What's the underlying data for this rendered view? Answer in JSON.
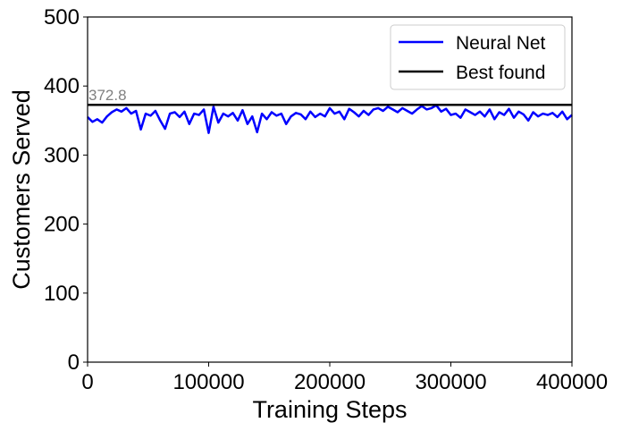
{
  "chart_data": {
    "type": "line",
    "xlabel": "Training Steps",
    "ylabel": "Customers Served",
    "xlim": [
      0,
      400000
    ],
    "ylim": [
      0,
      500
    ],
    "x_ticks": [
      0,
      100000,
      200000,
      300000,
      400000
    ],
    "x_tick_labels": [
      "0",
      "100000",
      "200000",
      "300000",
      "400000"
    ],
    "y_ticks": [
      0,
      100,
      200,
      300,
      400,
      500
    ],
    "y_tick_labels": [
      "0",
      "100",
      "200",
      "300",
      "400",
      "500"
    ],
    "grid": false,
    "legend_position": "top-right",
    "series": [
      {
        "name": "Neural Net",
        "color": "#0000ff",
        "x": [
          0,
          4000,
          8000,
          12000,
          16000,
          20000,
          24000,
          28000,
          32000,
          36000,
          40000,
          44000,
          48000,
          52000,
          56000,
          60000,
          64000,
          68000,
          72000,
          76000,
          80000,
          84000,
          88000,
          92000,
          96000,
          100000,
          104000,
          108000,
          112000,
          116000,
          120000,
          124000,
          128000,
          132000,
          136000,
          140000,
          144000,
          148000,
          152000,
          156000,
          160000,
          164000,
          168000,
          172000,
          176000,
          180000,
          184000,
          188000,
          192000,
          196000,
          200000,
          204000,
          208000,
          212000,
          216000,
          220000,
          224000,
          228000,
          232000,
          236000,
          240000,
          244000,
          248000,
          252000,
          256000,
          260000,
          264000,
          268000,
          272000,
          276000,
          280000,
          284000,
          288000,
          292000,
          296000,
          300000,
          304000,
          308000,
          312000,
          316000,
          320000,
          324000,
          328000,
          332000,
          336000,
          340000,
          344000,
          348000,
          352000,
          356000,
          360000,
          364000,
          368000,
          372000,
          376000,
          380000,
          384000,
          388000,
          392000,
          396000,
          400000
        ],
        "y": [
          355,
          348,
          352,
          347,
          356,
          362,
          366,
          363,
          368,
          360,
          364,
          337,
          360,
          357,
          364,
          350,
          338,
          360,
          362,
          355,
          363,
          345,
          360,
          358,
          366,
          332,
          370,
          347,
          360,
          356,
          361,
          350,
          365,
          345,
          356,
          333,
          360,
          352,
          362,
          357,
          360,
          345,
          356,
          361,
          359,
          352,
          363,
          355,
          360,
          356,
          368,
          360,
          363,
          352,
          367,
          362,
          356,
          364,
          358,
          366,
          368,
          364,
          370,
          366,
          362,
          368,
          364,
          360,
          366,
          371,
          366,
          368,
          372,
          363,
          367,
          358,
          360,
          354,
          366,
          362,
          358,
          363,
          356,
          366,
          352,
          362,
          358,
          367,
          354,
          363,
          359,
          350,
          362,
          356,
          360,
          358,
          361,
          355,
          363,
          352,
          358
        ]
      },
      {
        "name": "Best found",
        "color": "#000000",
        "x": [
          0,
          400000
        ],
        "y": [
          372.8,
          372.8
        ]
      }
    ],
    "annotations": [
      {
        "text": "372.8",
        "x": 0,
        "y": 372.8
      }
    ]
  }
}
